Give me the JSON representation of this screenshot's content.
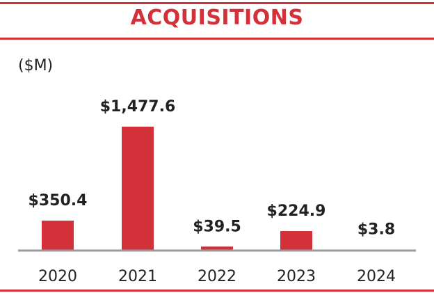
{
  "header": {
    "title": "ACQUISITIONS"
  },
  "colors": {
    "accent": "#d3313a",
    "axis": "#9a9a9a",
    "text": "#222222"
  },
  "chart_data": {
    "type": "bar",
    "title": "ACQUISITIONS",
    "unit_label": "($M)",
    "xlabel": "",
    "ylabel": "",
    "grid": false,
    "categories": [
      "2020",
      "2021",
      "2022",
      "2023",
      "2024"
    ],
    "values": [
      350.4,
      1477.6,
      39.5,
      224.9,
      3.8
    ],
    "data_labels": [
      "$350.4",
      "$1,477.6",
      "$39.5",
      "$224.9",
      "$3.8"
    ],
    "ylim": [
      0,
      1477.6
    ]
  }
}
